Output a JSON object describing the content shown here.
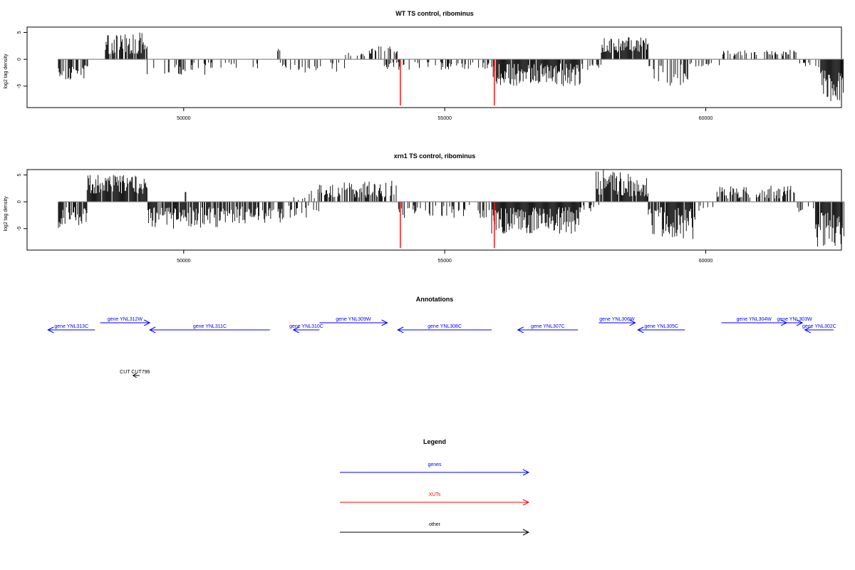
{
  "chart_data": [
    {
      "type": "bar",
      "title": "WT TS control, ribominus",
      "ylabel": "log2 tag density",
      "xlim": [
        47000,
        62600
      ],
      "ylim": [
        -9,
        6
      ],
      "x_ticks": [
        50000,
        55000,
        60000
      ],
      "y_ticks": [
        -5,
        0,
        5
      ],
      "x_tick_labels": [
        "50000",
        "55000",
        "60000"
      ],
      "y_tick_labels": [
        "-5",
        "0",
        "5"
      ],
      "baseline_range": [
        47600,
        62650
      ],
      "markers": [
        {
          "x": 54150,
          "y": -9,
          "color": "#ff0000"
        },
        {
          "x": 55950,
          "y": -9,
          "color": "#ff0000"
        }
      ],
      "segments": [
        {
          "x0": 47600,
          "x1": 48200,
          "min": -4,
          "max": -1,
          "density": 0.6
        },
        {
          "x0": 48250,
          "x1": 48300,
          "min": 0.8,
          "max": 1,
          "density": 0.5
        },
        {
          "x0": 48500,
          "x1": 49300,
          "min": 1,
          "max": 5,
          "density": 0.8
        },
        {
          "x0": 49300,
          "x1": 50700,
          "min": -3,
          "max": -0.6,
          "density": 0.35
        },
        {
          "x0": 50700,
          "x1": 51800,
          "min": -2,
          "max": -0.6,
          "density": 0.2
        },
        {
          "x0": 51800,
          "x1": 51850,
          "min": 1.5,
          "max": 2,
          "density": 0.5
        },
        {
          "x0": 51850,
          "x1": 53100,
          "min": -2.5,
          "max": -0.6,
          "density": 0.25
        },
        {
          "x0": 53100,
          "x1": 53500,
          "min": 0.6,
          "max": 1.2,
          "density": 0.25
        },
        {
          "x0": 53500,
          "x1": 54100,
          "min": 1,
          "max": 2.5,
          "density": 0.45
        },
        {
          "x0": 53800,
          "x1": 55900,
          "min": -2,
          "max": -0.5,
          "density": 0.35
        },
        {
          "x0": 55900,
          "x1": 57600,
          "min": -5,
          "max": -0.8,
          "density": 0.95
        },
        {
          "x0": 57600,
          "x1": 58000,
          "min": -2,
          "max": -0.8,
          "density": 0.3
        },
        {
          "x0": 58000,
          "x1": 58900,
          "min": 1,
          "max": 4.2,
          "density": 0.9
        },
        {
          "x0": 58900,
          "x1": 59700,
          "min": -5,
          "max": -0.8,
          "density": 0.45
        },
        {
          "x0": 59700,
          "x1": 60300,
          "min": -1.5,
          "max": -0.6,
          "density": 0.2
        },
        {
          "x0": 60300,
          "x1": 61800,
          "min": 0.6,
          "max": 1.8,
          "density": 0.4
        },
        {
          "x0": 61800,
          "x1": 62200,
          "min": -1.5,
          "max": -0.6,
          "density": 0.2
        },
        {
          "x0": 62200,
          "x1": 62650,
          "min": -8,
          "max": -2,
          "density": 0.95
        }
      ]
    },
    {
      "type": "bar",
      "title": "xrn1 TS control, ribominus",
      "ylabel": "log2 tag density",
      "xlim": [
        47000,
        62600
      ],
      "ylim": [
        -9,
        6
      ],
      "x_ticks": [
        50000,
        55000,
        60000
      ],
      "y_ticks": [
        -5,
        0,
        5
      ],
      "x_tick_labels": [
        "50000",
        "55000",
        "60000"
      ],
      "y_tick_labels": [
        "-5",
        "0",
        "5"
      ],
      "baseline_range": [
        47600,
        62650
      ],
      "markers": [
        {
          "x": 54150,
          "y": -9,
          "color": "#ff0000"
        },
        {
          "x": 55950,
          "y": -9,
          "color": "#ff0000"
        }
      ],
      "segments": [
        {
          "x0": 47600,
          "x1": 48150,
          "min": -5,
          "max": -1,
          "density": 0.7
        },
        {
          "x0": 48150,
          "x1": 49300,
          "min": 1.5,
          "max": 5,
          "density": 0.95
        },
        {
          "x0": 49300,
          "x1": 50700,
          "min": -5,
          "max": -1,
          "density": 0.8
        },
        {
          "x0": 50000,
          "x1": 50050,
          "min": 1.8,
          "max": 2,
          "density": 0.5
        },
        {
          "x0": 50700,
          "x1": 51900,
          "min": -4,
          "max": -0.8,
          "density": 0.6
        },
        {
          "x0": 51900,
          "x1": 52600,
          "min": -3,
          "max": 2.5,
          "density": 0.5
        },
        {
          "x0": 52600,
          "x1": 54100,
          "min": 0.8,
          "max": 4,
          "density": 0.6
        },
        {
          "x0": 54100,
          "x1": 55900,
          "min": -3,
          "max": -0.6,
          "density": 0.4
        },
        {
          "x0": 55900,
          "x1": 57600,
          "min": -6,
          "max": -1,
          "density": 0.95
        },
        {
          "x0": 57600,
          "x1": 58000,
          "min": -2,
          "max": -0.6,
          "density": 0.3
        },
        {
          "x0": 57900,
          "x1": 58900,
          "min": 1,
          "max": 6,
          "density": 0.95
        },
        {
          "x0": 58900,
          "x1": 59800,
          "min": -7,
          "max": -1,
          "density": 0.9
        },
        {
          "x0": 59800,
          "x1": 60200,
          "min": -2,
          "max": -0.6,
          "density": 0.3
        },
        {
          "x0": 60200,
          "x1": 61700,
          "min": 0.6,
          "max": 3,
          "density": 0.6
        },
        {
          "x0": 61700,
          "x1": 62100,
          "min": -3,
          "max": -0.6,
          "density": 0.3
        },
        {
          "x0": 62100,
          "x1": 62650,
          "min": -8.5,
          "max": -2,
          "density": 0.95
        }
      ]
    }
  ],
  "annotations": {
    "title": "Annotations",
    "color": "#0000ff",
    "genes": [
      {
        "label": "gene YNL313C",
        "start": 47400,
        "end": 48300,
        "strand": "-",
        "row": 0
      },
      {
        "label": "gene YNL312W",
        "start": 48400,
        "end": 49350,
        "strand": "+",
        "row": 1
      },
      {
        "label": "gene YNL311C",
        "start": 49350,
        "end": 51650,
        "strand": "-",
        "row": 0
      },
      {
        "label": "gene YNL310C",
        "start": 52100,
        "end": 52600,
        "strand": "-",
        "row": 0
      },
      {
        "label": "gene YNL309W",
        "start": 52600,
        "end": 53900,
        "strand": "+",
        "row": 1
      },
      {
        "label": "gene YNL308C",
        "start": 54100,
        "end": 55900,
        "strand": "-",
        "row": 0
      },
      {
        "label": "gene YNL307C",
        "start": 56400,
        "end": 57550,
        "strand": "-",
        "row": 0
      },
      {
        "label": "gene YNL306W",
        "start": 57950,
        "end": 58650,
        "strand": "+",
        "row": 1
      },
      {
        "label": "gene YNL305C",
        "start": 58700,
        "end": 59600,
        "strand": "-",
        "row": 0
      },
      {
        "label": "gene YNL304W",
        "start": 60300,
        "end": 61550,
        "strand": "+",
        "row": 1
      },
      {
        "label": "gene YNL303W",
        "start": 61550,
        "end": 61850,
        "strand": "+",
        "row": 1
      },
      {
        "label": "gene YNL302C",
        "start": 61900,
        "end": 63000,
        "strand": "-",
        "row": 0
      }
    ],
    "other": [
      {
        "label": "CUT CUT796",
        "start": 49030,
        "end": 49100,
        "strand": "-",
        "color": "#000000"
      }
    ]
  },
  "legend": {
    "title": "Legend",
    "items": [
      {
        "label": "genes",
        "color": "#0000ff"
      },
      {
        "label": "XUTs",
        "color": "#ff0000"
      },
      {
        "label": "other",
        "color": "#000000"
      }
    ]
  }
}
